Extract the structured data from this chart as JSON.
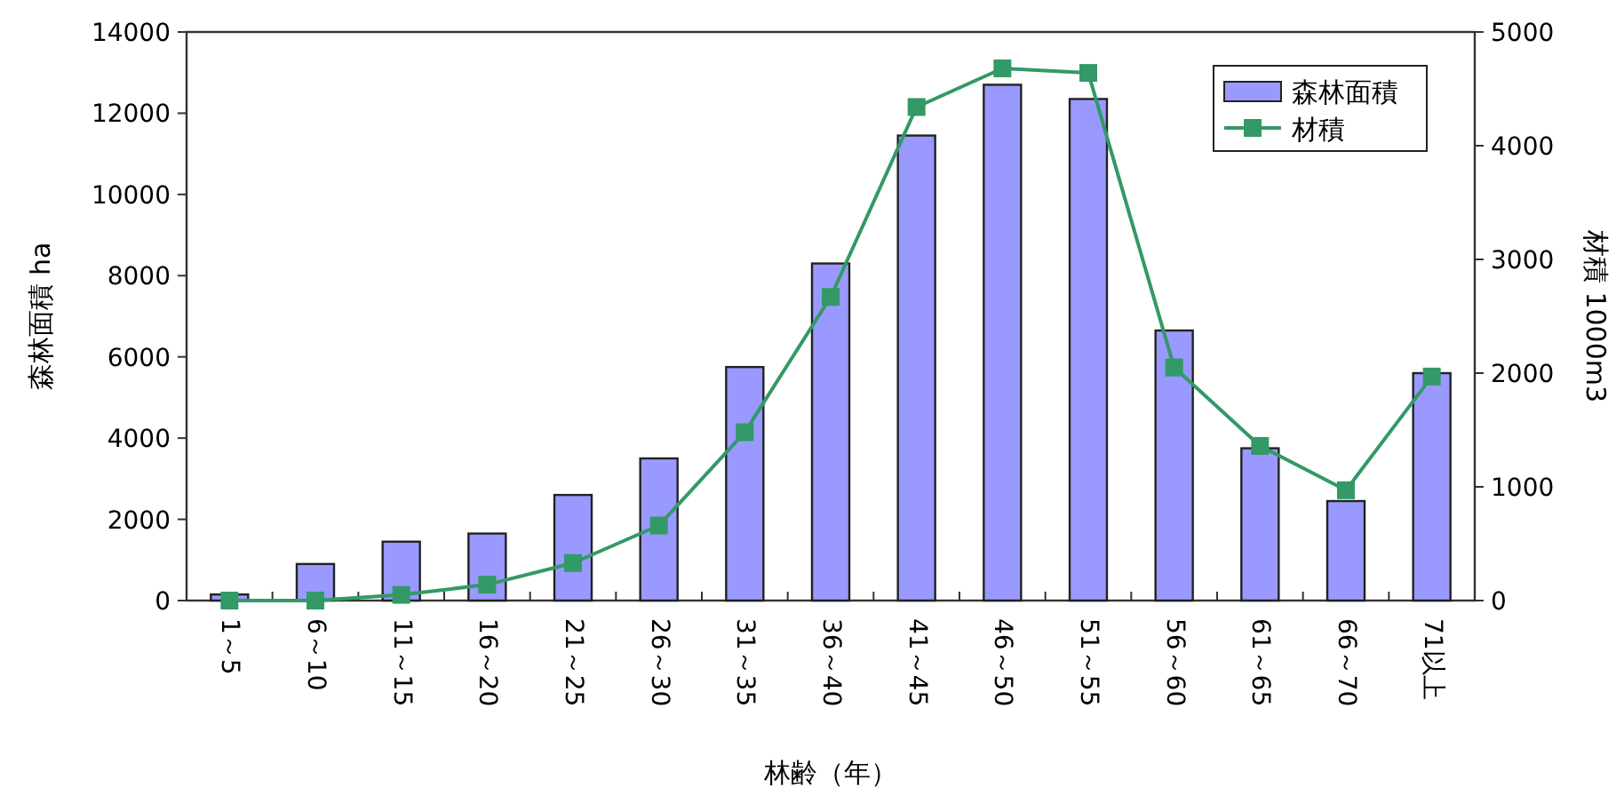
{
  "chart_data": {
    "type": "bar",
    "categories": [
      "1～5",
      "6～10",
      "11～15",
      "16～20",
      "21～25",
      "26～30",
      "31～35",
      "36～40",
      "41～45",
      "46～50",
      "51～55",
      "56～60",
      "61～65",
      "66～70",
      "71以上"
    ],
    "series": [
      {
        "name": "森林面積",
        "color": "#9999ff",
        "values": [
          150,
          900,
          1450,
          1650,
          2600,
          3500,
          5750,
          8300,
          11450,
          12700,
          12350,
          6650,
          3750,
          2450,
          5600
        ]
      },
      {
        "name": "材積",
        "type": "line",
        "axis": "y2",
        "color": "#339966",
        "values": [
          0,
          0,
          50,
          140,
          330,
          660,
          1480,
          2670,
          4340,
          4680,
          4640,
          2050,
          1360,
          970,
          1970
        ]
      }
    ],
    "xlabel": "林齢（年）",
    "ylabel": "森林面積 ha",
    "y2label": "材積 1000m3",
    "ylim": [
      0,
      14000
    ],
    "yticks": [
      0,
      2000,
      4000,
      6000,
      8000,
      10000,
      12000,
      14000
    ],
    "y2lim": [
      0,
      5000
    ],
    "y2ticks": [
      0,
      1000,
      2000,
      3000,
      4000,
      5000
    ],
    "legend": "top right",
    "marker": "square"
  }
}
